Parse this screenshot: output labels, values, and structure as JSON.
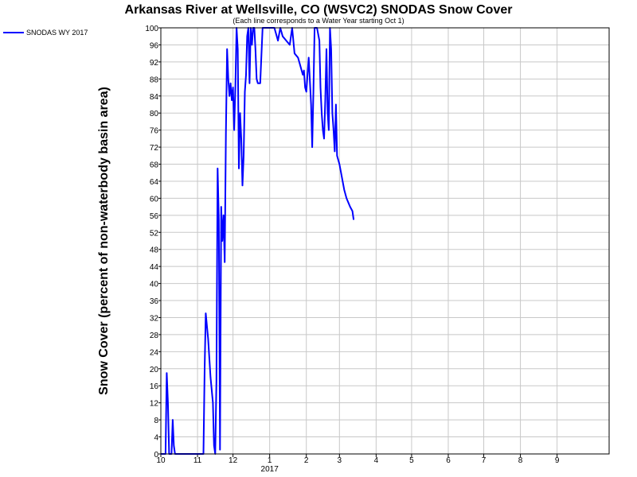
{
  "chart_data": {
    "type": "line",
    "title": "Arkansas River at Wellsville, CO (WSVC2) SNODAS Snow Cover",
    "subtitle": "(Each line corresponds to a Water Year starting Oct 1)",
    "ylabel": "Snow Cover (percent of non-waterbody basin area)",
    "xlabel": "",
    "ylim": [
      0,
      100
    ],
    "y_ticks": [
      0,
      4,
      8,
      12,
      16,
      20,
      24,
      28,
      32,
      36,
      40,
      44,
      48,
      52,
      56,
      60,
      64,
      68,
      72,
      76,
      80,
      84,
      88,
      92,
      96,
      100
    ],
    "xlim": [
      "2016-10-01",
      "2017-10-15"
    ],
    "x_ticks": [
      {
        "date": "2016-10-01",
        "label": "10"
      },
      {
        "date": "2016-11-01",
        "label": "11"
      },
      {
        "date": "2016-12-01",
        "label": "12"
      },
      {
        "date": "2017-01-01",
        "label": "1"
      },
      {
        "date": "2017-02-01",
        "label": "2"
      },
      {
        "date": "2017-03-01",
        "label": "3"
      },
      {
        "date": "2017-04-01",
        "label": "4"
      },
      {
        "date": "2017-05-01",
        "label": "5"
      },
      {
        "date": "2017-06-01",
        "label": "6"
      },
      {
        "date": "2017-07-01",
        "label": "7"
      },
      {
        "date": "2017-08-01",
        "label": "8"
      },
      {
        "date": "2017-09-01",
        "label": "9"
      }
    ],
    "year_label": {
      "date": "2017-01-01",
      "label": "2017"
    },
    "grid": true,
    "legend_position": "top-left",
    "series": [
      {
        "name": "SNODAS WY 2017",
        "color": "#0000ff",
        "points": [
          [
            "2016-10-01",
            0
          ],
          [
            "2016-10-05",
            0
          ],
          [
            "2016-10-06",
            19
          ],
          [
            "2016-10-07",
            12
          ],
          [
            "2016-10-08",
            0
          ],
          [
            "2016-10-10",
            0
          ],
          [
            "2016-10-11",
            8
          ],
          [
            "2016-10-12",
            2
          ],
          [
            "2016-10-13",
            0
          ],
          [
            "2016-10-20",
            0
          ],
          [
            "2016-11-01",
            0
          ],
          [
            "2016-11-06",
            0
          ],
          [
            "2016-11-07",
            20
          ],
          [
            "2016-11-08",
            33
          ],
          [
            "2016-11-10",
            27
          ],
          [
            "2016-11-12",
            18
          ],
          [
            "2016-11-14",
            12
          ],
          [
            "2016-11-15",
            2
          ],
          [
            "2016-11-16",
            0
          ],
          [
            "2016-11-17",
            17
          ],
          [
            "2016-11-18",
            67
          ],
          [
            "2016-11-19",
            55
          ],
          [
            "2016-11-20",
            1
          ],
          [
            "2016-11-21",
            58
          ],
          [
            "2016-11-22",
            50
          ],
          [
            "2016-11-23",
            56
          ],
          [
            "2016-11-24",
            45
          ],
          [
            "2016-11-25",
            75
          ],
          [
            "2016-11-26",
            95
          ],
          [
            "2016-11-27",
            88
          ],
          [
            "2016-11-28",
            84
          ],
          [
            "2016-11-29",
            87
          ],
          [
            "2016-11-30",
            83
          ],
          [
            "2016-12-01",
            86
          ],
          [
            "2016-12-02",
            76
          ],
          [
            "2016-12-03",
            86
          ],
          [
            "2016-12-04",
            100
          ],
          [
            "2016-12-05",
            95
          ],
          [
            "2016-12-06",
            67
          ],
          [
            "2016-12-07",
            80
          ],
          [
            "2016-12-08",
            74
          ],
          [
            "2016-12-09",
            63
          ],
          [
            "2016-12-10",
            70
          ],
          [
            "2016-12-11",
            85
          ],
          [
            "2016-12-12",
            89
          ],
          [
            "2016-12-13",
            98
          ],
          [
            "2016-12-14",
            100
          ],
          [
            "2016-12-15",
            87
          ],
          [
            "2016-12-16",
            100
          ],
          [
            "2016-12-17",
            96
          ],
          [
            "2016-12-18",
            100
          ],
          [
            "2016-12-19",
            100
          ],
          [
            "2016-12-20",
            95
          ],
          [
            "2016-12-21",
            88
          ],
          [
            "2016-12-22",
            87
          ],
          [
            "2016-12-24",
            87
          ],
          [
            "2016-12-26",
            100
          ],
          [
            "2017-01-05",
            100
          ],
          [
            "2017-01-08",
            97
          ],
          [
            "2017-01-10",
            100
          ],
          [
            "2017-01-12",
            98
          ],
          [
            "2017-01-15",
            97
          ],
          [
            "2017-01-18",
            96
          ],
          [
            "2017-01-20",
            100
          ],
          [
            "2017-01-22",
            94
          ],
          [
            "2017-01-25",
            93
          ],
          [
            "2017-01-27",
            91
          ],
          [
            "2017-01-29",
            89
          ],
          [
            "2017-01-30",
            90
          ],
          [
            "2017-01-31",
            86
          ],
          [
            "2017-02-01",
            85
          ],
          [
            "2017-02-03",
            93
          ],
          [
            "2017-02-05",
            82
          ],
          [
            "2017-02-06",
            72
          ],
          [
            "2017-02-07",
            85
          ],
          [
            "2017-02-08",
            100
          ],
          [
            "2017-02-10",
            100
          ],
          [
            "2017-02-12",
            97
          ],
          [
            "2017-02-13",
            86
          ],
          [
            "2017-02-14",
            80
          ],
          [
            "2017-02-15",
            76
          ],
          [
            "2017-02-16",
            74
          ],
          [
            "2017-02-17",
            83
          ],
          [
            "2017-02-18",
            95
          ],
          [
            "2017-02-19",
            80
          ],
          [
            "2017-02-20",
            76
          ],
          [
            "2017-02-21",
            100
          ],
          [
            "2017-02-22",
            95
          ],
          [
            "2017-02-23",
            80
          ],
          [
            "2017-02-24",
            76
          ],
          [
            "2017-02-25",
            71
          ],
          [
            "2017-02-26",
            82
          ],
          [
            "2017-02-27",
            70
          ],
          [
            "2017-03-01",
            68
          ],
          [
            "2017-03-03",
            65
          ],
          [
            "2017-03-05",
            62
          ],
          [
            "2017-03-07",
            60
          ],
          [
            "2017-03-10",
            58
          ],
          [
            "2017-03-12",
            57
          ],
          [
            "2017-03-13",
            55
          ]
        ]
      }
    ]
  }
}
